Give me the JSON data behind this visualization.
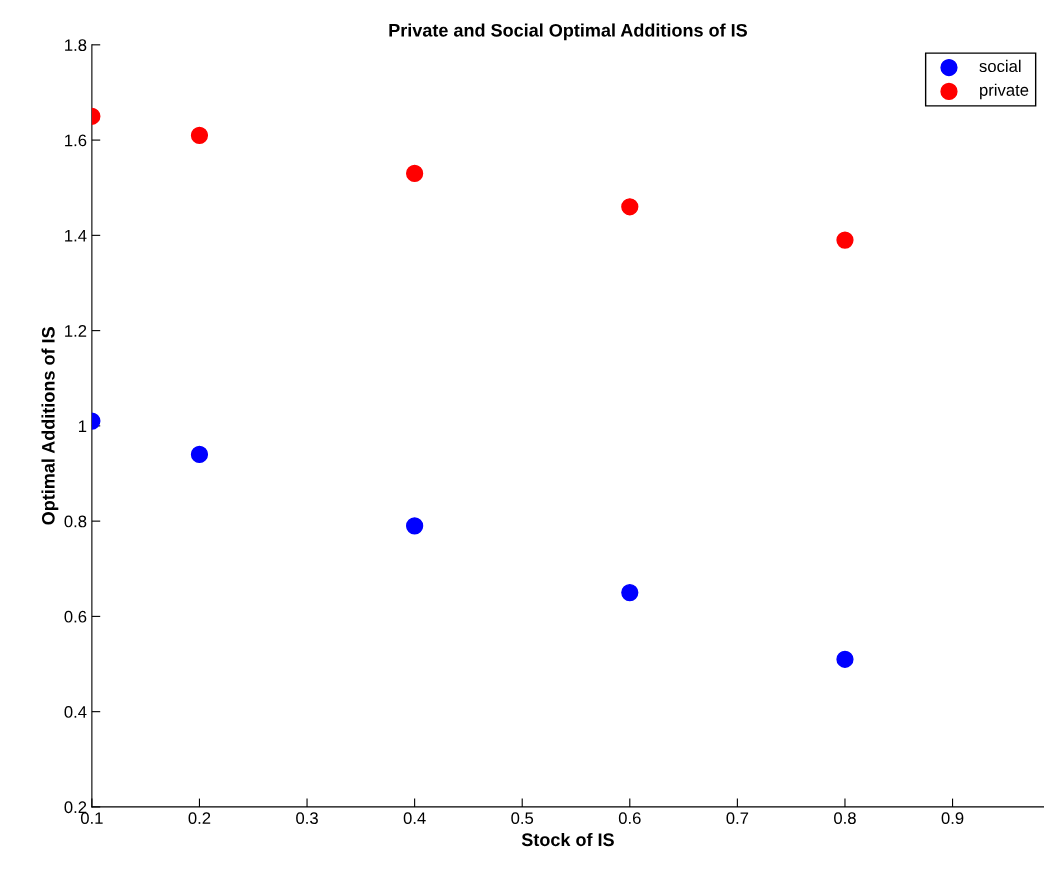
{
  "chart_data": {
    "type": "scatter",
    "title": "Private and Social Optimal Additions of IS",
    "xlabel": "Stock of IS",
    "ylabel": "Optimal Additions of IS",
    "x": [
      0.1,
      0.2,
      0.4,
      0.6,
      0.8
    ],
    "series": [
      {
        "name": "social",
        "color": "#0000ff",
        "values": [
          1.01,
          0.94,
          0.79,
          0.65,
          0.51
        ]
      },
      {
        "name": "private",
        "color": "#ff0000",
        "values": [
          1.65,
          1.61,
          1.53,
          1.46,
          1.39
        ]
      }
    ],
    "xlim": [
      0.1,
      0.985
    ],
    "xticks": [
      0.1,
      0.2,
      0.3,
      0.4,
      0.5,
      0.6,
      0.7,
      0.8,
      0.9
    ],
    "ylim": [
      0.2,
      1.8
    ],
    "yticks": [
      0.2,
      0.4,
      0.6,
      0.8,
      1,
      1.2,
      1.4,
      1.6,
      1.8
    ],
    "marker": "circle",
    "legend": "top right",
    "grid": false
  }
}
